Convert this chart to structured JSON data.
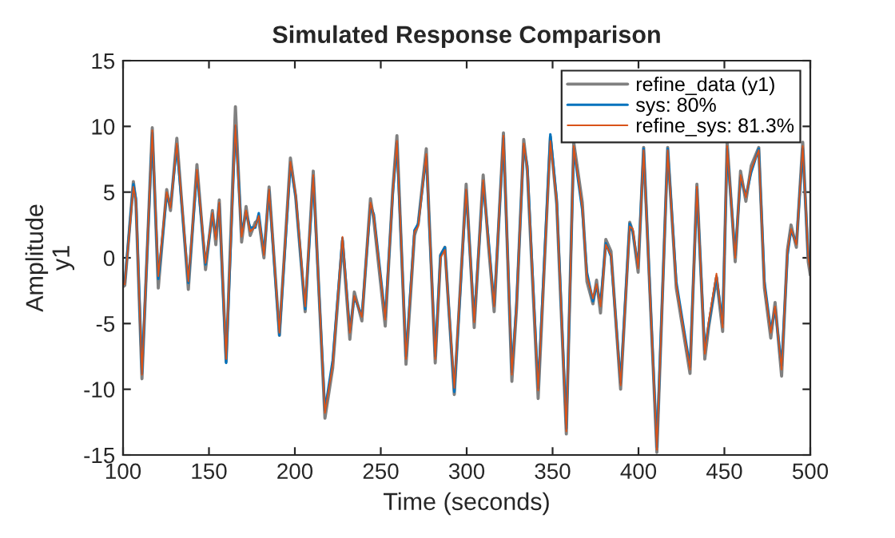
{
  "chart_data": {
    "type": "line",
    "title": "Simulated Response Comparison",
    "xlabel": "Time (seconds)",
    "ylabel": "Amplitude\ny1",
    "x": [
      100,
      101,
      106,
      107.5,
      111,
      117,
      120.5,
      125.4,
      127.6,
      131.3,
      138,
      143,
      148,
      152,
      154,
      156,
      160,
      165.4,
      169,
      171.6,
      174,
      177,
      179,
      182,
      185,
      191,
      197.4,
      200.5,
      206,
      210.7,
      217.5,
      222,
      227.7,
      232,
      234.6,
      239,
      244,
      246,
      252.6,
      257,
      259.4,
      264.7,
      269.6,
      271.8,
      276.5,
      281.7,
      284.8,
      287.3,
      292.8,
      299.7,
      304.4,
      309.6,
      312.7,
      316,
      321.4,
      326.3,
      329,
      333.2,
      335.3,
      341.6,
      348.7,
      352.4,
      358,
      362.3,
      367.3,
      370,
      373.5,
      375.6,
      377.9,
      381,
      384,
      389.6,
      394.9,
      396.7,
      399.8,
      403,
      410.7,
      417,
      422,
      430,
      434,
      438.6,
      440.8,
      445.4,
      449,
      451.6,
      456.3,
      459.4,
      462.5,
      465.6,
      470,
      473.3,
      477,
      479.5,
      483.3,
      486.7,
      488.8,
      491.9,
      495.6,
      498.8,
      500
    ],
    "series": [
      {
        "name": "refine_data (y1)",
        "color": "#808080",
        "values": [
          -2.2,
          -2.1,
          5.8,
          4.2,
          -9.2,
          9.9,
          -2.3,
          5.2,
          3.6,
          9.1,
          -2.4,
          7.1,
          -0.9,
          3.6,
          1.0,
          4.4,
          -7.9,
          11.5,
          1.2,
          3.9,
          1.7,
          2.7,
          2.9,
          0.0,
          5.4,
          -5.9,
          7.6,
          4.6,
          -4.1,
          6.6,
          -12.2,
          -8.4,
          1.3,
          -6.2,
          -2.6,
          -4.8,
          4.5,
          2.8,
          -5.2,
          5.2,
          9.3,
          -8.1,
          1.7,
          2.6,
          8.3,
          -8.0,
          0.2,
          0.8,
          -10.4,
          5.6,
          -5.3,
          6.3,
          0.9,
          -4.1,
          9.5,
          -9.4,
          -3.9,
          9.0,
          6.6,
          -10.7,
          9.2,
          4.1,
          -13.4,
          8.8,
          4.2,
          -1.8,
          -3.5,
          -1.7,
          -4.2,
          1.4,
          0.5,
          -10.0,
          2.7,
          2.0,
          -1.1,
          8.4,
          -14.8,
          8.4,
          -2.3,
          -8.8,
          5.6,
          -7.7,
          -5.3,
          -1.5,
          -5.6,
          8.8,
          -0.3,
          6.6,
          4.3,
          7.0,
          8.4,
          -2.3,
          -6.1,
          -3.4,
          -9.0,
          0.6,
          2.5,
          0.8,
          8.8,
          -0.3,
          -1.3
        ]
      },
      {
        "name": "sys: 80%",
        "color": "#0072bd",
        "values": [
          -2.0,
          -1.9,
          5.6,
          4.5,
          -8.8,
          9.5,
          -1.6,
          4.8,
          3.9,
          8.5,
          -1.9,
          6.5,
          -0.5,
          3.3,
          1.6,
          4.1,
          -8.0,
          10.0,
          1.9,
          3.4,
          2.3,
          2.3,
          3.4,
          0.3,
          5.1,
          -5.9,
          7.1,
          4.7,
          -3.9,
          6.1,
          -11.6,
          -7.8,
          1.5,
          -5.5,
          -3.0,
          -4.4,
          4.0,
          3.3,
          -4.5,
          4.9,
          8.7,
          -7.5,
          2.1,
          2.6,
          7.7,
          -7.5,
          0.2,
          0.8,
          -10.2,
          5.1,
          -4.7,
          5.7,
          1.4,
          -3.6,
          9.1,
          -8.7,
          -3.5,
          8.5,
          7.0,
          -9.9,
          9.4,
          4.5,
          -13.0,
          8.3,
          3.6,
          -1.1,
          -3.3,
          -2.1,
          -3.4,
          1.1,
          0.1,
          -9.5,
          2.6,
          2.0,
          -0.7,
          8.3,
          -14.4,
          8.3,
          -1.8,
          -8.3,
          5.2,
          -7.0,
          -5.1,
          -1.4,
          -5.0,
          8.3,
          0.2,
          6.1,
          4.7,
          6.5,
          8.3,
          -1.8,
          -5.5,
          -3.9,
          -8.2,
          0.2,
          2.1,
          1.1,
          8.3,
          0.1,
          -0.8
        ]
      },
      {
        "name": "refine_sys: 81.3%",
        "color": "#d95319",
        "values": [
          -2.0,
          -2.0,
          5.4,
          4.4,
          -8.9,
          9.7,
          -1.4,
          5.0,
          3.8,
          8.7,
          -1.8,
          6.7,
          -0.4,
          3.4,
          1.4,
          4.2,
          -7.7,
          10.1,
          1.6,
          3.6,
          2.0,
          2.4,
          3.2,
          0.2,
          5.2,
          -5.7,
          7.3,
          4.8,
          -3.7,
          6.3,
          -11.8,
          -8.1,
          1.6,
          -5.7,
          -2.9,
          -4.5,
          4.2,
          3.2,
          -4.7,
          5.0,
          8.9,
          -7.7,
          2.0,
          2.4,
          7.9,
          -7.7,
          0.0,
          0.6,
          -9.9,
          5.2,
          -4.9,
          5.9,
          1.2,
          -3.7,
          9.3,
          -8.9,
          -3.7,
          8.7,
          6.9,
          -10.1,
          8.9,
          4.4,
          -13.2,
          8.5,
          3.8,
          -1.4,
          -3.1,
          -2.0,
          -3.7,
          1.0,
          0.2,
          -9.7,
          2.4,
          2.2,
          -0.8,
          8.2,
          -14.6,
          8.2,
          -2.0,
          -8.5,
          5.4,
          -7.3,
          -4.9,
          -1.2,
          -5.3,
          8.5,
          0.0,
          6.3,
          4.6,
          6.7,
          8.2,
          -2.0,
          -5.7,
          -3.7,
          -8.5,
          0.4,
          2.2,
          1.0,
          8.5,
          0.0,
          -1.0
        ]
      }
    ],
    "xlim": [
      100,
      500
    ],
    "xticks": [
      100,
      150,
      200,
      250,
      300,
      350,
      400,
      450,
      500
    ],
    "ylim": [
      -15,
      15
    ],
    "yticks": [
      -15,
      -10,
      -5,
      0,
      5,
      10,
      15
    ],
    "legend": "top right",
    "grid": false,
    "marker": "none",
    "line_style": "solid"
  }
}
